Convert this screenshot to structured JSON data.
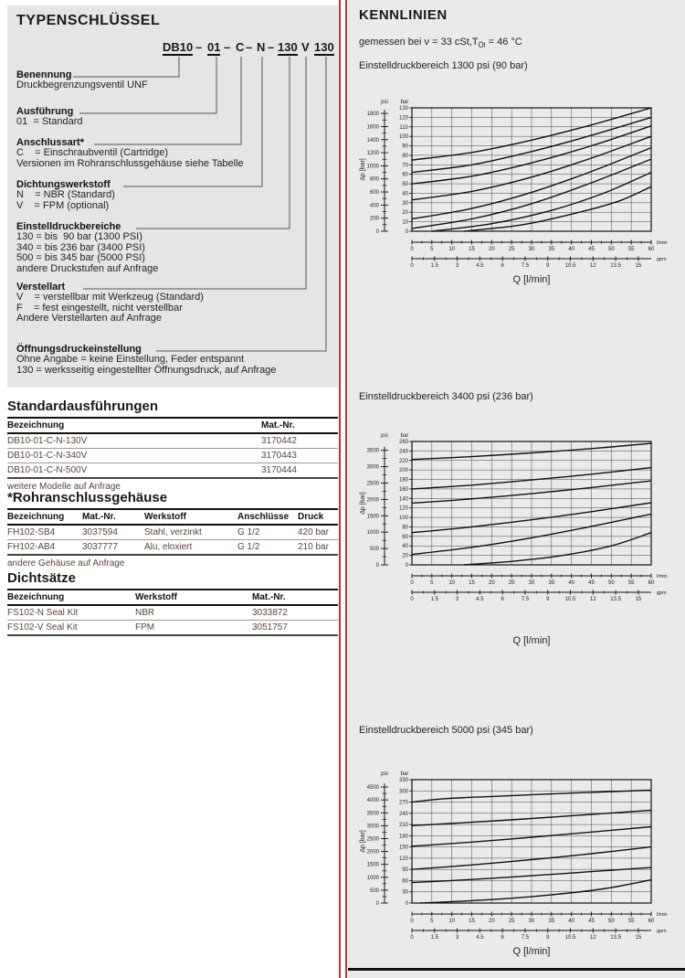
{
  "left": {
    "title": "TYPENSCHLÜSSEL",
    "code": {
      "tokens": [
        {
          "text": "DB10",
          "underline": true
        },
        {
          "text": "–",
          "underline": false
        },
        {
          "text": "01",
          "underline": true
        },
        {
          "text": "–",
          "underline": false
        },
        {
          "text": "C",
          "underline": false
        },
        {
          "text": "–",
          "underline": false
        },
        {
          "text": "N",
          "underline": false
        },
        {
          "text": "–",
          "underline": false
        },
        {
          "text": "130",
          "underline": true
        },
        {
          "text": "V",
          "underline": false
        },
        {
          "text": "130",
          "underline": true
        }
      ]
    },
    "sections": [
      {
        "label": "Benennung",
        "lines": [
          "Druckbegrenzungsventil UNF"
        ]
      },
      {
        "label": "Ausführung",
        "lines": [
          "01  = Standard"
        ]
      },
      {
        "label": "Anschlussart*",
        "lines": [
          "C    = Einschraubventil (Cartridge)",
          "Versionen im Rohranschlussgehäuse siehe Tabelle"
        ]
      },
      {
        "label": "Dichtungswerkstoff",
        "lines": [
          "N    = NBR (Standard)",
          "V    = FPM (optional)"
        ]
      },
      {
        "label": "Einstelldruckbereiche",
        "lines": [
          "130 = bis  90 bar (1300 PSI)",
          "340 = bis 236 bar (3400 PSI)",
          "500 = bis 345 bar (5000 PSI)",
          "andere Druckstufen auf Anfrage"
        ]
      },
      {
        "label": "Verstellart",
        "lines": [
          "V    = verstellbar mit Werkzeug (Standard)",
          "F    = fest eingestellt, nicht verstellbar",
          "Andere Verstellarten auf Anfrage"
        ]
      },
      {
        "label": "Öffnungsdruckeinstellung",
        "lines": [
          "Ohne Angabe = keine Einstellung, Feder entspannt",
          "130 = werksseitig eingestellter Öffnungsdruck, auf Anfrage"
        ]
      }
    ],
    "tables": [
      {
        "title": "Standardausführungen",
        "headers": [
          "Bezeichnung",
          "Mat.-Nr."
        ],
        "rows": [
          [
            "DB10-01-C-N-130V",
            "3170442"
          ],
          [
            "DB10-01-C-N-340V",
            "3170443"
          ],
          [
            "DB10-01-C-N-500V",
            "3170444"
          ]
        ],
        "note": "weitere Modelle auf Anfrage"
      },
      {
        "title": "*Rohranschlussgehäuse",
        "headers": [
          "Bezeichnung",
          "Mat.-Nr.",
          "Werkstoff",
          "Anschlüsse",
          "Druck"
        ],
        "rows": [
          [
            "FH102-SB4",
            "3037594",
            "Stahl, verzinkt",
            "G 1/2",
            "420 bar"
          ],
          [
            "FH102-AB4",
            "3037777",
            "Alu, eloxiert",
            "G 1/2",
            "210 bar"
          ]
        ],
        "note": "andere Gehäuse auf Anfrage"
      },
      {
        "title": "Dichtsätze",
        "headers": [
          "Bezeichnung",
          "Werkstoff",
          "Mat.-Nr."
        ],
        "rows": [
          [
            "FS102-N Seal Kit",
            "NBR",
            "3033872"
          ],
          [
            "FS102-V Seal Kit",
            "FPM",
            "3051757"
          ]
        ],
        "note": ""
      }
    ]
  },
  "right": {
    "title": "KENNLINIEN",
    "measured": {
      "prefix": "gemessen bei ",
      "nu": "ν",
      "mid": " = 33 cSt,T",
      "sub": "Öl",
      "suffix": " = 46 °C"
    },
    "caption": "Q [l/min]",
    "ylabel": "Δp [bar]"
  },
  "chart_data": [
    {
      "type": "line",
      "title": "Einstelldruckbereich 1300 psi (90 bar)",
      "xlabel": "Q [l/min]",
      "ylabel": "Δp [bar]",
      "x_axis_lmin": {
        "min": 0,
        "max": 60,
        "step": 5,
        "unit": "l/min"
      },
      "x_axis_gpm": {
        "min": 0,
        "max": 15,
        "step": 1.5,
        "unit": "gpm"
      },
      "y_axis_bar": {
        "min": 0,
        "max": 130,
        "step": 10,
        "unit": "bar"
      },
      "y_axis_psi": {
        "min": 0,
        "max": 1800,
        "step": 200,
        "unit": "psi"
      },
      "grid": true,
      "series": [
        {
          "name": "curve-1",
          "points": [
            [
              0,
              75
            ],
            [
              15,
              83
            ],
            [
              30,
              96
            ],
            [
              45,
              112
            ],
            [
              60,
              130
            ]
          ]
        },
        {
          "name": "curve-2",
          "points": [
            [
              0,
              62
            ],
            [
              15,
              70
            ],
            [
              30,
              84
            ],
            [
              45,
              101
            ],
            [
              60,
              120
            ]
          ]
        },
        {
          "name": "curve-3",
          "points": [
            [
              0,
              50
            ],
            [
              15,
              58
            ],
            [
              30,
              72
            ],
            [
              45,
              90
            ],
            [
              60,
              111
            ]
          ]
        },
        {
          "name": "curve-4",
          "points": [
            [
              0,
              33
            ],
            [
              15,
              42
            ],
            [
              30,
              57
            ],
            [
              45,
              77
            ],
            [
              60,
              100
            ]
          ]
        },
        {
          "name": "curve-5",
          "points": [
            [
              0,
              13
            ],
            [
              15,
              24
            ],
            [
              30,
              41
            ],
            [
              45,
              63
            ],
            [
              60,
              88
            ]
          ]
        },
        {
          "name": "curve-6",
          "points": [
            [
              0,
              3
            ],
            [
              15,
              13
            ],
            [
              30,
              29
            ],
            [
              45,
              51
            ],
            [
              60,
              76
            ]
          ]
        },
        {
          "name": "curve-7",
          "points": [
            [
              5,
              0
            ],
            [
              20,
              8
            ],
            [
              35,
              22
            ],
            [
              48,
              40
            ],
            [
              60,
              62
            ]
          ]
        },
        {
          "name": "curve-8",
          "points": [
            [
              13,
              0
            ],
            [
              28,
              7
            ],
            [
              42,
              20
            ],
            [
              52,
              32
            ],
            [
              60,
              47
            ]
          ]
        }
      ]
    },
    {
      "type": "line",
      "title": "Einstelldruckbereich 3400 psi (236 bar)",
      "xlabel": "Q [l/min]",
      "ylabel": "Δp [bar]",
      "x_axis_lmin": {
        "min": 0,
        "max": 60,
        "step": 5,
        "unit": "l/min"
      },
      "x_axis_gpm": {
        "min": 0,
        "max": 15,
        "step": 1.5,
        "unit": "gpm"
      },
      "y_axis_bar": {
        "min": 0,
        "max": 260,
        "step": 20,
        "unit": "bar"
      },
      "y_axis_psi": {
        "min": 0,
        "max": 3500,
        "step": 500,
        "unit": "psi"
      },
      "grid": true,
      "series": [
        {
          "name": "curve-1",
          "points": [
            [
              0,
              222
            ],
            [
              15,
              228
            ],
            [
              30,
              236
            ],
            [
              45,
              245
            ],
            [
              60,
              256
            ]
          ]
        },
        {
          "name": "curve-2",
          "points": [
            [
              0,
              160
            ],
            [
              15,
              168
            ],
            [
              30,
              179
            ],
            [
              45,
              191
            ],
            [
              60,
              205
            ]
          ]
        },
        {
          "name": "curve-3",
          "points": [
            [
              0,
              130
            ],
            [
              15,
              139
            ],
            [
              30,
              150
            ],
            [
              45,
              163
            ],
            [
              60,
              177
            ]
          ]
        },
        {
          "name": "curve-4",
          "points": [
            [
              0,
              68
            ],
            [
              15,
              80
            ],
            [
              30,
              95
            ],
            [
              45,
              112
            ],
            [
              60,
              131
            ]
          ]
        },
        {
          "name": "curve-5",
          "points": [
            [
              0,
              22
            ],
            [
              15,
              37
            ],
            [
              30,
              57
            ],
            [
              45,
              81
            ],
            [
              60,
              107
            ]
          ]
        },
        {
          "name": "curve-6",
          "points": [
            [
              13,
              0
            ],
            [
              26,
              8
            ],
            [
              38,
              20
            ],
            [
              50,
              40
            ],
            [
              60,
              68
            ]
          ]
        }
      ]
    },
    {
      "type": "line",
      "title": "Einstelldruckbereich 5000 psi (345 bar)",
      "xlabel": "Q [l/min]",
      "ylabel": "Δp [bar]",
      "x_axis_lmin": {
        "min": 0,
        "max": 60,
        "step": 5,
        "unit": "l/min"
      },
      "x_axis_gpm": {
        "min": 0,
        "max": 15,
        "step": 1.5,
        "unit": "gpm"
      },
      "y_axis_bar": {
        "min": 0,
        "max": 330,
        "step": 30,
        "unit": "bar"
      },
      "y_axis_psi": {
        "min": 0,
        "max": 4500,
        "step": 500,
        "unit": "psi"
      },
      "grid": true,
      "series": [
        {
          "name": "curve-1",
          "points": [
            [
              0,
              270
            ],
            [
              8,
              279
            ],
            [
              20,
              285
            ],
            [
              40,
              294
            ],
            [
              60,
              302
            ]
          ]
        },
        {
          "name": "curve-2",
          "points": [
            [
              0,
              207
            ],
            [
              15,
              216
            ],
            [
              30,
              226
            ],
            [
              45,
              237
            ],
            [
              60,
              248
            ]
          ]
        },
        {
          "name": "curve-3",
          "points": [
            [
              0,
              152
            ],
            [
              15,
              163
            ],
            [
              30,
              176
            ],
            [
              45,
              190
            ],
            [
              60,
              204
            ]
          ]
        },
        {
          "name": "curve-4",
          "points": [
            [
              0,
              90
            ],
            [
              15,
              102
            ],
            [
              30,
              116
            ],
            [
              45,
              132
            ],
            [
              60,
              150
            ]
          ]
        },
        {
          "name": "curve-5",
          "points": [
            [
              0,
              55
            ],
            [
              15,
              63
            ],
            [
              30,
              73
            ],
            [
              45,
              84
            ],
            [
              60,
              95
            ]
          ]
        },
        {
          "name": "curve-6",
          "points": [
            [
              2,
              0
            ],
            [
              18,
              8
            ],
            [
              33,
              20
            ],
            [
              48,
              38
            ],
            [
              60,
              62
            ]
          ]
        }
      ]
    }
  ]
}
